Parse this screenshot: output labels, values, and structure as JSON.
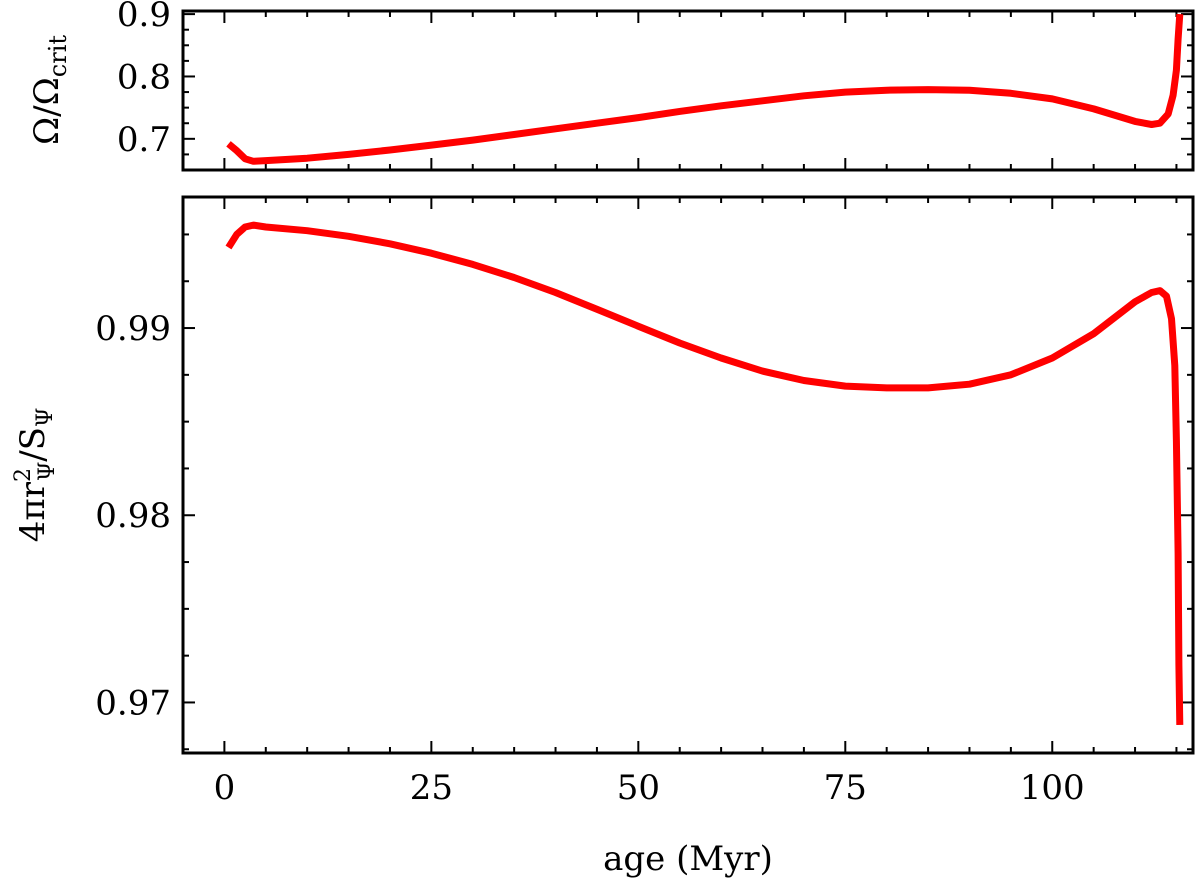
{
  "chart_data": [
    {
      "type": "line",
      "panel": "top",
      "ylabel": "Ω/Ω_crit",
      "ylabel_main": "Ω/Ω",
      "ylabel_sub": "crit",
      "xlim": [
        -5,
        117
      ],
      "ylim": [
        0.65,
        0.905
      ],
      "y_major_ticks": [
        0.7,
        0.8,
        0.9
      ],
      "y_tick_labels": [
        "0.7",
        "0.8",
        "0.9"
      ],
      "y_minor_step": 0.025,
      "x_major_ticks": [
        0,
        25,
        50,
        75,
        100
      ],
      "x_minor_step": 5,
      "grid": false,
      "color": "#ff0000",
      "x": [
        0.5,
        1.5,
        2.5,
        3.5,
        5,
        10,
        15,
        20,
        25,
        30,
        35,
        40,
        45,
        50,
        55,
        60,
        65,
        70,
        75,
        80,
        85,
        90,
        95,
        100,
        105,
        108,
        110,
        112,
        113,
        114,
        114.6,
        115,
        115.2,
        115.4
      ],
      "y": [
        0.692,
        0.681,
        0.668,
        0.664,
        0.665,
        0.669,
        0.675,
        0.682,
        0.69,
        0.698,
        0.707,
        0.716,
        0.725,
        0.734,
        0.744,
        0.753,
        0.761,
        0.769,
        0.775,
        0.778,
        0.779,
        0.778,
        0.773,
        0.764,
        0.748,
        0.736,
        0.728,
        0.723,
        0.725,
        0.74,
        0.77,
        0.81,
        0.86,
        0.9
      ]
    },
    {
      "type": "line",
      "panel": "bottom",
      "ylabel": "4πr_Ψ²/S_Ψ",
      "ylabel_parts": [
        "4πr",
        "2",
        "Ψ",
        "/S",
        "Ψ"
      ],
      "xlabel": "age (Myr)",
      "xlim": [
        -5,
        117
      ],
      "ylim": [
        0.9673,
        0.997
      ],
      "y_major_ticks": [
        0.97,
        0.98,
        0.99
      ],
      "y_tick_labels": [
        "0.97",
        "0.98",
        "0.99"
      ],
      "y_minor_step": 0.0025,
      "x_major_ticks": [
        0,
        25,
        50,
        75,
        100
      ],
      "x_tick_labels": [
        "0",
        "25",
        "50",
        "75",
        "100"
      ],
      "x_minor_step": 5,
      "grid": false,
      "color": "#ff0000",
      "x": [
        0.5,
        1.5,
        2.5,
        3.5,
        5,
        10,
        15,
        20,
        25,
        30,
        35,
        40,
        45,
        50,
        55,
        60,
        65,
        70,
        75,
        80,
        85,
        90,
        95,
        100,
        105,
        110,
        112,
        113,
        113.8,
        114.4,
        114.8,
        115.0,
        115.2,
        115.3,
        115.4
      ],
      "y": [
        0.9943,
        0.995,
        0.9954,
        0.9955,
        0.9954,
        0.9952,
        0.9949,
        0.9945,
        0.994,
        0.9934,
        0.9927,
        0.9919,
        0.991,
        0.9901,
        0.9892,
        0.9884,
        0.9877,
        0.9872,
        0.9869,
        0.9868,
        0.9868,
        0.987,
        0.9875,
        0.9884,
        0.9897,
        0.9914,
        0.9919,
        0.992,
        0.9917,
        0.9905,
        0.988,
        0.984,
        0.978,
        0.972,
        0.9688
      ]
    }
  ]
}
